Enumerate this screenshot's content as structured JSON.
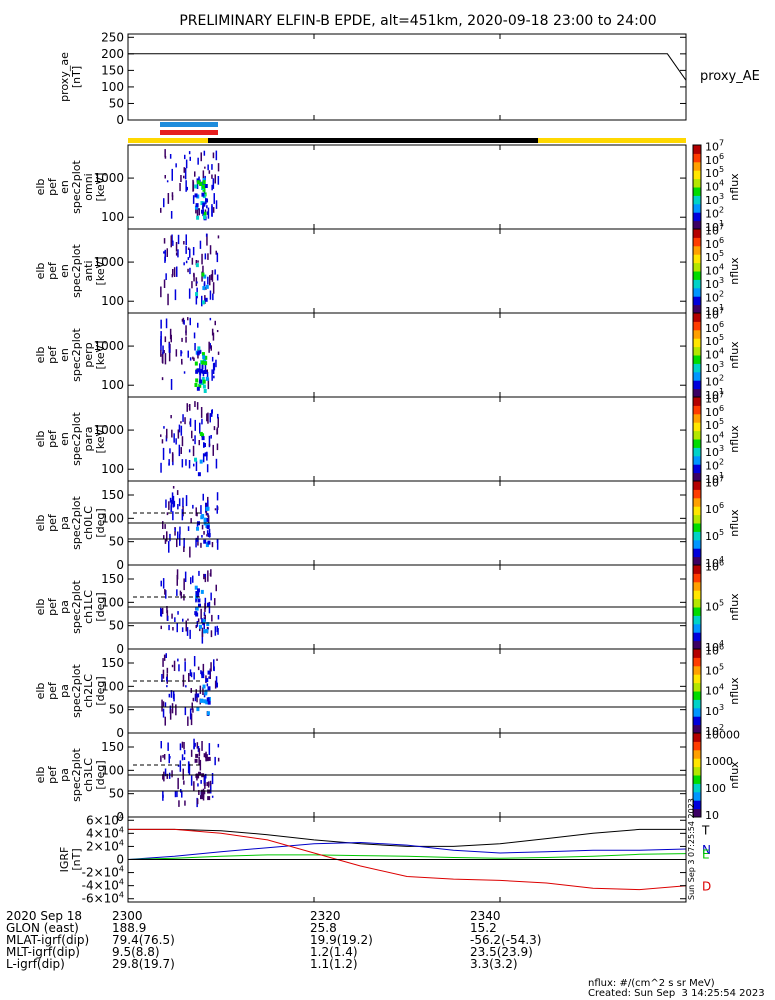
{
  "title": "PRELIMINARY ELFIN-B EPDE, alt=451km, 2020-09-18 23:00 to 24:00",
  "chart_data": {
    "type": "heatmap",
    "x_axis": {
      "ticks": [
        {
          "value": 0,
          "label": "2300"
        },
        {
          "value": 20,
          "label": "2320"
        },
        {
          "value": 40,
          "label": "2340"
        }
      ],
      "range_min": [
        0,
        60
      ]
    },
    "panels": [
      {
        "id": "proxy_ae",
        "kind": "line",
        "ylabel": [
          "proxy_ae",
          "[nT]"
        ],
        "ylim": [
          0,
          260
        ],
        "yticks": [
          "0",
          "50",
          "100",
          "150",
          "200",
          "250"
        ],
        "yticks_values": [
          0,
          50,
          100,
          150,
          200,
          250
        ],
        "legend": "proxy_AE",
        "series": [
          {
            "name": "proxy_AE",
            "color": "#000000",
            "x": [
              0,
              58,
              60
            ],
            "y": [
              200,
              200,
              120
            ]
          }
        ]
      },
      {
        "id": "omni",
        "kind": "spectrogram",
        "ylabel": [
          "elb",
          "pef",
          "en",
          "spec2plot",
          "omni",
          "[keV]"
        ],
        "ylim": [
          50,
          7000
        ],
        "yscale": "log",
        "yticks": [
          "100",
          "1000"
        ],
        "yticks_values": [
          100,
          1000
        ],
        "colorbar": {
          "labels": [
            "10",
            "10",
            "10",
            "10",
            "10",
            "10",
            "10"
          ],
          "exponents": [
            "1",
            "2",
            "3",
            "4",
            "5",
            "6",
            "7"
          ],
          "label": "nflux"
        }
      },
      {
        "id": "anti",
        "kind": "spectrogram",
        "ylabel": [
          "elb",
          "pef",
          "en",
          "spec2plot",
          "anti",
          "[keV]"
        ],
        "ylim": [
          50,
          7000
        ],
        "yscale": "log",
        "yticks": [
          "100",
          "1000"
        ],
        "yticks_values": [
          100,
          1000
        ],
        "colorbar": {
          "labels": [
            "10",
            "10",
            "10",
            "10",
            "10",
            "10",
            "10"
          ],
          "exponents": [
            "1",
            "2",
            "3",
            "4",
            "5",
            "6",
            "7"
          ],
          "label": "nflux"
        }
      },
      {
        "id": "perp",
        "kind": "spectrogram",
        "ylabel": [
          "elb",
          "pef",
          "en",
          "spec2plot",
          "perp",
          "[keV]"
        ],
        "ylim": [
          50,
          7000
        ],
        "yscale": "log",
        "yticks": [
          "100",
          "1000"
        ],
        "yticks_values": [
          100,
          1000
        ],
        "colorbar": {
          "labels": [
            "10",
            "10",
            "10",
            "10",
            "10",
            "10",
            "10"
          ],
          "exponents": [
            "1",
            "2",
            "3",
            "4",
            "5",
            "6",
            "7"
          ],
          "label": "nflux"
        }
      },
      {
        "id": "para",
        "kind": "spectrogram",
        "ylabel": [
          "elb",
          "pef",
          "en",
          "spec2plot",
          "para",
          "[keV]"
        ],
        "ylim": [
          50,
          7000
        ],
        "yscale": "log",
        "yticks": [
          "100",
          "1000"
        ],
        "yticks_values": [
          100,
          1000
        ],
        "colorbar": {
          "labels": [
            "10",
            "10",
            "10",
            "10",
            "10",
            "10",
            "10"
          ],
          "exponents": [
            "1",
            "2",
            "3",
            "4",
            "5",
            "6",
            "7"
          ],
          "label": "nflux"
        }
      },
      {
        "id": "ch0LC",
        "kind": "spectrogram",
        "ylabel": [
          "elb",
          "pef",
          "pa",
          "spec2plot",
          "ch0LC",
          "[deg]"
        ],
        "ylim": [
          0,
          180
        ],
        "yticks": [
          "0",
          "50",
          "100",
          "150"
        ],
        "yticks_values": [
          0,
          50,
          100,
          150
        ],
        "colorbar": {
          "labels": [
            "10",
            "10",
            "10",
            "10"
          ],
          "exponents": [
            "4",
            "5",
            "6",
            "7"
          ],
          "label": "nflux"
        }
      },
      {
        "id": "ch1LC",
        "kind": "spectrogram",
        "ylabel": [
          "elb",
          "pef",
          "pa",
          "spec2plot",
          "ch1LC",
          "[deg]"
        ],
        "ylim": [
          0,
          180
        ],
        "yticks": [
          "0",
          "50",
          "100",
          "150"
        ],
        "yticks_values": [
          0,
          50,
          100,
          150
        ],
        "colorbar": {
          "labels": [
            "10",
            "10",
            "10"
          ],
          "exponents": [
            "4",
            "5",
            "6"
          ],
          "label": "nflux"
        }
      },
      {
        "id": "ch2LC",
        "kind": "spectrogram",
        "ylabel": [
          "elb",
          "pef",
          "pa",
          "spec2plot",
          "ch2LC",
          "[deg]"
        ],
        "ylim": [
          0,
          180
        ],
        "yticks": [
          "0",
          "50",
          "100",
          "150"
        ],
        "yticks_values": [
          0,
          50,
          100,
          150
        ],
        "colorbar": {
          "labels": [
            "10",
            "10",
            "10",
            "10",
            "10"
          ],
          "exponents": [
            "2",
            "3",
            "4",
            "5",
            "6"
          ],
          "label": "nflux"
        }
      },
      {
        "id": "ch3LC",
        "kind": "spectrogram",
        "ylabel": [
          "elb",
          "pef",
          "pa",
          "spec2plot",
          "ch3LC",
          "[deg]"
        ],
        "ylim": [
          0,
          180
        ],
        "yticks": [
          "0",
          "50",
          "100",
          "150"
        ],
        "yticks_values": [
          0,
          50,
          100,
          150
        ],
        "colorbar": {
          "labels": [
            "10",
            "100",
            "1000",
            "10000"
          ],
          "exponents": [
            "",
            "",
            "",
            ""
          ],
          "label": "nflux"
        }
      },
      {
        "id": "igrf",
        "kind": "line",
        "ylabel": [
          "IGRF",
          "[nT]"
        ],
        "ylim": [
          -65000,
          65000
        ],
        "yticks": [
          "-6×10",
          "-4×10",
          "-2×10",
          "0",
          "2×10",
          "4×10",
          "6×10"
        ],
        "yticks_values": [
          -60000,
          -40000,
          -20000,
          0,
          20000,
          40000,
          60000
        ],
        "yticks_exp": "4",
        "series": [
          {
            "name": "T",
            "color": "#000000",
            "x": [
              0,
              5,
              10,
              15,
              20,
              25,
              30,
              35,
              40,
              45,
              50,
              55,
              60
            ],
            "y": [
              46000,
              46000,
              44000,
              38000,
              30000,
              24000,
              20000,
              20000,
              24000,
              32000,
              40000,
              46000,
              46000
            ]
          },
          {
            "name": "N",
            "color": "#0000c8",
            "x": [
              0,
              5,
              10,
              15,
              20,
              25,
              30,
              35,
              40,
              45,
              50,
              55,
              60
            ],
            "y": [
              0,
              5000,
              12000,
              18000,
              24000,
              26000,
              22000,
              14000,
              10000,
              12000,
              14000,
              14000,
              16000
            ]
          },
          {
            "name": "E",
            "color": "#00c800",
            "x": [
              0,
              5,
              10,
              15,
              20,
              25,
              30,
              35,
              40,
              45,
              50,
              55,
              60
            ],
            "y": [
              0,
              2000,
              5000,
              7000,
              7000,
              6000,
              5000,
              3000,
              2000,
              3000,
              5000,
              8000,
              9000
            ]
          },
          {
            "name": "D",
            "color": "#dc0000",
            "x": [
              0,
              5,
              10,
              15,
              20,
              25,
              30,
              35,
              40,
              45,
              50,
              55,
              60
            ],
            "y": [
              46000,
              46000,
              40000,
              30000,
              10000,
              -10000,
              -26000,
              -30000,
              -32000,
              -36000,
              -44000,
              -46000,
              -40000
            ]
          }
        ]
      }
    ],
    "colorbar_colors": [
      "#3c0064",
      "#0000dc",
      "#0096ff",
      "#00d2c8",
      "#00dc00",
      "#b4e600",
      "#ffe600",
      "#ffa000",
      "#ff3c00",
      "#b40000"
    ]
  },
  "footer": {
    "rows": [
      {
        "label": "2020 Sep 18",
        "values": [
          "2300",
          "2320",
          "2340"
        ]
      },
      {
        "label": "GLON (east)",
        "values": [
          "188.9",
          "25.8",
          "15.2"
        ]
      },
      {
        "label": "MLAT-igrf(dip)",
        "values": [
          "79.4(76.5)",
          "19.9(19.2)",
          "-56.2(-54.3)"
        ]
      },
      {
        "label": "MLT-igrf(dip)",
        "values": [
          "9.5(8.8)",
          "1.2(1.4)",
          "23.5(23.9)"
        ]
      },
      {
        "label": "L-igrf(dip)",
        "values": [
          "29.8(19.7)",
          "1.1(1.2)",
          "3.3(3.2)"
        ]
      }
    ],
    "nflux_units": "nflux: #/(cm^2 s sr MeV)",
    "created": "Created: Sun Sep  3 14:25:54 2023",
    "side_stamp": "Sun Sep  3 07:25:54 2023"
  }
}
